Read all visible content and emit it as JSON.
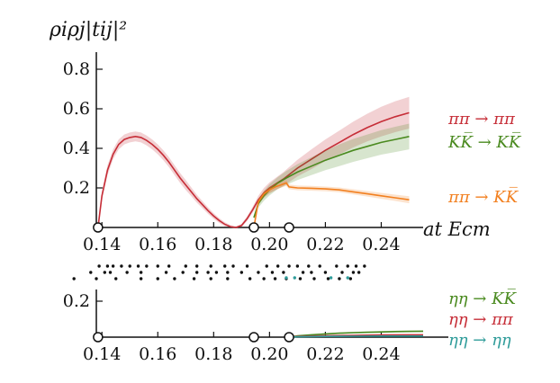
{
  "chart_data": [
    {
      "type": "line",
      "ylabel": "ρiρj|tij|²",
      "xlabel": "at Ecm",
      "xlim": [
        0.138,
        0.255
      ],
      "ylim": [
        0,
        0.9
      ],
      "x_ticks": [
        0.14,
        0.16,
        0.18,
        0.2,
        0.22,
        0.24
      ],
      "x_tick_labels": [
        "0.14",
        "0.16",
        "0.18",
        "0.20",
        "0.22",
        "0.24"
      ],
      "y_ticks": [
        0.2,
        0.4,
        0.6,
        0.8
      ],
      "y_tick_labels": [
        "0.2",
        "0.4",
        "0.6",
        "0.8"
      ],
      "thresholds": [
        0.1386,
        0.1944,
        0.207
      ],
      "colors": {
        "pipi": "#c62d37",
        "KK": "#4a8a1f",
        "pipiKK": "#f28020",
        "etaeta": "#2f9c9a"
      },
      "series": [
        {
          "name": "ππ → ππ",
          "color_key": "pipi",
          "band": true,
          "x": [
            0.1386,
            0.14,
            0.142,
            0.144,
            0.146,
            0.148,
            0.15,
            0.152,
            0.154,
            0.156,
            0.158,
            0.16,
            0.162,
            0.164,
            0.166,
            0.168,
            0.17,
            0.172,
            0.174,
            0.176,
            0.178,
            0.18,
            0.182,
            0.184,
            0.186,
            0.188,
            0.19,
            0.192,
            0.194,
            0.196,
            0.198,
            0.2,
            0.205,
            0.21,
            0.215,
            0.22,
            0.225,
            0.23,
            0.235,
            0.24,
            0.245,
            0.25
          ],
          "y": [
            0.0,
            0.16,
            0.29,
            0.37,
            0.42,
            0.445,
            0.455,
            0.46,
            0.455,
            0.44,
            0.42,
            0.395,
            0.365,
            0.33,
            0.29,
            0.25,
            0.215,
            0.18,
            0.145,
            0.115,
            0.085,
            0.058,
            0.035,
            0.016,
            0.004,
            0.0,
            0.01,
            0.045,
            0.09,
            0.14,
            0.175,
            0.2,
            0.245,
            0.3,
            0.345,
            0.39,
            0.43,
            0.47,
            0.505,
            0.535,
            0.56,
            0.58
          ],
          "band_halfwidth": [
            0.0,
            0.02,
            0.025,
            0.025,
            0.025,
            0.025,
            0.025,
            0.025,
            0.025,
            0.025,
            0.025,
            0.025,
            0.025,
            0.025,
            0.025,
            0.025,
            0.025,
            0.022,
            0.02,
            0.018,
            0.016,
            0.014,
            0.012,
            0.01,
            0.008,
            0.005,
            0.008,
            0.012,
            0.015,
            0.02,
            0.025,
            0.028,
            0.035,
            0.042,
            0.05,
            0.055,
            0.06,
            0.065,
            0.07,
            0.075,
            0.078,
            0.08
          ]
        },
        {
          "name": "KK̅ → KK̅",
          "color_key": "KK",
          "band": true,
          "x": [
            0.1944,
            0.196,
            0.198,
            0.2,
            0.203,
            0.206,
            0.21,
            0.215,
            0.22,
            0.225,
            0.23,
            0.235,
            0.24,
            0.245,
            0.25
          ],
          "y": [
            0.05,
            0.12,
            0.16,
            0.19,
            0.225,
            0.25,
            0.28,
            0.31,
            0.34,
            0.365,
            0.39,
            0.41,
            0.43,
            0.445,
            0.46
          ],
          "band_halfwidth": [
            0.01,
            0.02,
            0.025,
            0.028,
            0.03,
            0.035,
            0.04,
            0.045,
            0.05,
            0.055,
            0.058,
            0.06,
            0.062,
            0.064,
            0.065
          ]
        },
        {
          "name": "ππ → KK̅",
          "color_key": "pipiKK",
          "band": true,
          "x": [
            0.1944,
            0.196,
            0.198,
            0.2,
            0.202,
            0.204,
            0.206,
            0.207,
            0.21,
            0.215,
            0.22,
            0.225,
            0.23,
            0.235,
            0.24,
            0.245,
            0.25
          ],
          "y": [
            0.0,
            0.13,
            0.17,
            0.19,
            0.205,
            0.215,
            0.225,
            0.205,
            0.2,
            0.198,
            0.195,
            0.19,
            0.18,
            0.17,
            0.16,
            0.15,
            0.14
          ],
          "band_halfwidth": [
            0.0,
            0.015,
            0.015,
            0.015,
            0.015,
            0.015,
            0.015,
            0.012,
            0.012,
            0.012,
            0.012,
            0.012,
            0.013,
            0.014,
            0.015,
            0.016,
            0.018
          ]
        }
      ]
    },
    {
      "type": "scatter",
      "description_none": "",
      "rows": [
        {
          "color": "#111111",
          "x": [
            0.139,
            0.142,
            0.144,
            0.147,
            0.15,
            0.153,
            0.156,
            0.16,
            0.164,
            0.17,
            0.174,
            0.179,
            0.184,
            0.187,
            0.192,
            0.199,
            0.203,
            0.207,
            0.21,
            0.214,
            0.218,
            0.224,
            0.228,
            0.231,
            0.234
          ]
        },
        {
          "color": "#111111",
          "x": [
            0.136,
            0.141,
            0.143,
            0.149,
            0.154,
            0.163,
            0.169,
            0.174,
            0.178,
            0.181,
            0.185,
            0.19,
            0.196,
            0.201,
            0.205,
            0.212,
            0.215,
            0.22,
            0.226,
            0.23,
            0.232
          ]
        },
        {
          "color": "#111111",
          "x": [
            0.13,
            0.138,
            0.145,
            0.154,
            0.16,
            0.166,
            0.173,
            0.179,
            0.185,
            0.193,
            0.198,
            0.202,
            0.206,
            0.211,
            0.216,
            0.221,
            0.225,
            0.229
          ]
        },
        {
          "color": "#2f9c9a",
          "x": [
            0.206,
            0.209,
            0.222,
            0.228
          ]
        }
      ]
    },
    {
      "type": "line",
      "xlabel": "",
      "xlim": [
        0.138,
        0.255
      ],
      "ylim": [
        0,
        0.2
      ],
      "x_ticks": [
        0.14,
        0.16,
        0.18,
        0.2,
        0.22,
        0.24
      ],
      "x_tick_labels": [
        "0.14",
        "0.16",
        "0.18",
        "0.20",
        "0.22",
        "0.24"
      ],
      "y_ticks": [
        0.2
      ],
      "y_tick_labels": [
        "0.2"
      ],
      "thresholds": [
        0.1386,
        0.1944,
        0.207
      ],
      "series": [
        {
          "name": "ηη → KK̅",
          "color_key": "KK",
          "x": [
            0.207,
            0.21,
            0.215,
            0.22,
            0.225,
            0.23,
            0.235,
            0.24,
            0.245,
            0.25,
            0.255
          ],
          "y": [
            0.0,
            0.007,
            0.013,
            0.018,
            0.022,
            0.025,
            0.027,
            0.029,
            0.031,
            0.032,
            0.033
          ],
          "band": true,
          "band_halfwidth": [
            0.0,
            0.002,
            0.003,
            0.004,
            0.004,
            0.005,
            0.005,
            0.005,
            0.005,
            0.005,
            0.005
          ]
        },
        {
          "name": "ηη → ππ",
          "color_key": "pipi",
          "x": [
            0.207,
            0.21,
            0.22,
            0.23,
            0.24,
            0.25,
            0.255
          ],
          "y": [
            0.0,
            0.004,
            0.008,
            0.01,
            0.012,
            0.013,
            0.013
          ],
          "band": false
        },
        {
          "name": "ηη → ηη",
          "color_key": "etaeta",
          "x": [
            0.207,
            0.21,
            0.22,
            0.23,
            0.24,
            0.25,
            0.255
          ],
          "y": [
            0.0,
            0.002,
            0.004,
            0.005,
            0.006,
            0.006,
            0.006
          ],
          "band": false
        }
      ]
    }
  ]
}
